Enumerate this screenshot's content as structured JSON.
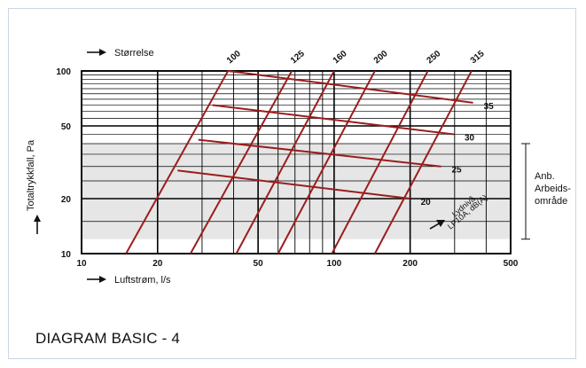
{
  "caption": "DIAGRAM BASIC - 4",
  "colors": {
    "curve": "#9b1d1d",
    "grid": "#000000",
    "band": "#e6e6e6",
    "text": "#111111"
  },
  "chart_data": {
    "type": "line",
    "x_scale": "log",
    "y_scale": "log",
    "xlabel": "Luftstrøm, l/s",
    "ylabel": "Totaltrykkfall, Pa",
    "size_axis_label": "Størrelse",
    "xlim": [
      10,
      500
    ],
    "ylim": [
      10,
      100
    ],
    "x_ticks": [
      10,
      20,
      50,
      100,
      200,
      500
    ],
    "y_ticks": [
      10,
      20,
      50,
      100
    ],
    "grid": true,
    "size_lines": [
      {
        "name": "100",
        "points": [
          [
            15,
            10
          ],
          [
            38,
            100
          ]
        ]
      },
      {
        "name": "125",
        "points": [
          [
            27,
            10
          ],
          [
            68,
            100
          ]
        ]
      },
      {
        "name": "160",
        "points": [
          [
            41,
            10
          ],
          [
            100,
            100
          ]
        ]
      },
      {
        "name": "200",
        "points": [
          [
            60,
            10
          ],
          [
            145,
            100
          ]
        ]
      },
      {
        "name": "250",
        "points": [
          [
            98,
            10
          ],
          [
            235,
            100
          ]
        ]
      },
      {
        "name": "315",
        "points": [
          [
            145,
            10
          ],
          [
            350,
            100
          ]
        ]
      }
    ],
    "sound_lines": [
      {
        "name": "20",
        "points": [
          [
            24,
            28.5
          ],
          [
            200,
            20
          ]
        ]
      },
      {
        "name": "25",
        "points": [
          [
            29,
            42
          ],
          [
            265,
            30
          ]
        ]
      },
      {
        "name": "30",
        "points": [
          [
            33,
            65
          ],
          [
            298,
            45
          ]
        ]
      },
      {
        "name": "35",
        "points": [
          [
            38,
            100
          ],
          [
            355,
            67
          ]
        ]
      }
    ],
    "working_range": {
      "ymin": 12,
      "ymax": 40,
      "label": [
        "Anb.",
        "Arbeids-",
        "område"
      ]
    },
    "sound_axis_label": [
      "Lydnivå",
      "LP10A, dB(A)"
    ]
  }
}
